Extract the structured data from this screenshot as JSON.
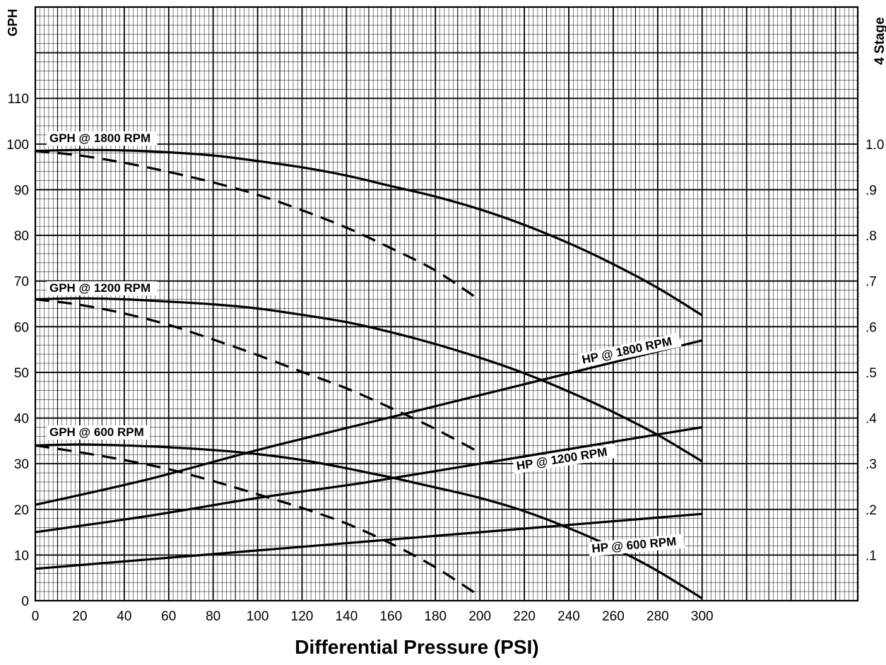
{
  "chart_data": {
    "type": "line",
    "xlabel": "Differential Pressure (PSI)",
    "ylabel": "GPH",
    "y2label": "4 Stage",
    "x_ticks": [
      "0",
      "20",
      "40",
      "60",
      "80",
      "100",
      "120",
      "140",
      "160",
      "180",
      "200",
      "220",
      "240",
      "260",
      "280",
      "300"
    ],
    "y_ticks": [
      "0",
      "10",
      "20",
      "30",
      "40",
      "50",
      "60",
      "70",
      "80",
      "90",
      "100",
      "110"
    ],
    "y2_ticks": [
      ".1",
      ".2",
      ".3",
      ".4",
      ".5",
      ".6",
      ".7",
      ".8",
      ".9",
      "1.0"
    ],
    "xlim": [
      0,
      370
    ],
    "ylim": [
      0,
      130
    ],
    "y2lim": [
      0,
      1.3
    ],
    "grid": true,
    "series": [
      {
        "name": "GPH @ 1800 RPM",
        "axis": "left",
        "style": "solid",
        "x": [
          0,
          20,
          40,
          60,
          80,
          100,
          120,
          140,
          160,
          180,
          200,
          220,
          240,
          260,
          280,
          300
        ],
        "y": [
          98.5,
          98.7,
          98.6,
          98.2,
          97.5,
          96.3,
          94.9,
          93.1,
          90.8,
          88.5,
          85.7,
          82.3,
          78.3,
          73.7,
          68.5,
          62.5
        ]
      },
      {
        "name": "",
        "axis": "left",
        "style": "dashed",
        "x": [
          0,
          20,
          40,
          60,
          80,
          100,
          120,
          140,
          160,
          180,
          200
        ],
        "y": [
          98.5,
          97.5,
          95.9,
          93.9,
          91.6,
          88.9,
          85.5,
          81.7,
          77.2,
          72.3,
          65.8
        ]
      },
      {
        "name": "GPH @ 1200 RPM",
        "axis": "left",
        "style": "solid",
        "x": [
          0,
          20,
          40,
          60,
          80,
          100,
          120,
          140,
          160,
          180,
          200,
          220,
          240,
          260,
          280,
          300
        ],
        "y": [
          66.0,
          66.2,
          66.0,
          65.5,
          64.9,
          64.0,
          62.6,
          61.0,
          58.8,
          56.2,
          53.2,
          49.8,
          45.8,
          41.3,
          36.3,
          30.5
        ]
      },
      {
        "name": "",
        "axis": "left",
        "style": "dashed",
        "x": [
          0,
          20,
          40,
          60,
          80,
          100,
          120,
          140,
          160,
          180,
          200
        ],
        "y": [
          66.0,
          64.8,
          62.9,
          60.4,
          57.2,
          53.8,
          50.1,
          46.5,
          42.2,
          37.6,
          32.4
        ]
      },
      {
        "name": "GPH @ 600 RPM",
        "axis": "left",
        "style": "solid",
        "x": [
          0,
          20,
          40,
          60,
          80,
          100,
          120,
          140,
          160,
          180,
          200,
          220,
          240,
          260,
          280,
          300
        ],
        "y": [
          34.0,
          34.2,
          34.0,
          33.6,
          33.0,
          32.1,
          30.8,
          29.0,
          27.0,
          24.8,
          22.5,
          19.6,
          15.9,
          11.6,
          6.5,
          0.5
        ]
      },
      {
        "name": "",
        "axis": "left",
        "style": "dashed",
        "x": [
          0,
          20,
          40,
          60,
          80,
          100,
          120,
          140,
          160,
          180,
          200
        ],
        "y": [
          34.0,
          32.5,
          30.8,
          28.8,
          26.2,
          23.3,
          20.3,
          16.9,
          12.5,
          7.3,
          1.0
        ]
      },
      {
        "name": "HP @ 1800 RPM",
        "axis": "right",
        "style": "solid",
        "x": [
          0,
          50,
          100,
          150,
          200,
          250,
          300
        ],
        "y": [
          0.21,
          0.265,
          0.33,
          0.39,
          0.45,
          0.51,
          0.57
        ]
      },
      {
        "name": "HP @ 1200 RPM",
        "axis": "right",
        "style": "solid",
        "x": [
          0,
          50,
          100,
          150,
          200,
          250,
          300
        ],
        "y": [
          0.15,
          0.185,
          0.225,
          0.26,
          0.3,
          0.34,
          0.38
        ]
      },
      {
        "name": "HP @ 600 RPM",
        "axis": "right",
        "style": "solid",
        "x": [
          0,
          50,
          100,
          150,
          200,
          250,
          300
        ],
        "y": [
          0.07,
          0.09,
          0.11,
          0.13,
          0.15,
          0.17,
          0.19
        ]
      }
    ]
  }
}
